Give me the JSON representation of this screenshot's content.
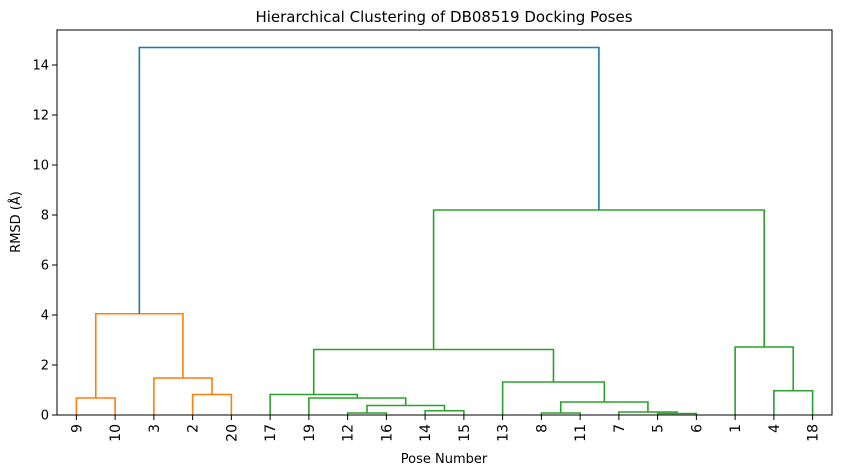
{
  "chart_data": {
    "type": "dendrogram",
    "title": "Hierarchical Clustering of DB08519 Docking Poses",
    "xlabel": "Pose Number",
    "ylabel": "RMSD (Å)",
    "ylim": [
      0,
      15.4
    ],
    "yticks": [
      0,
      2,
      4,
      6,
      8,
      10,
      12,
      14
    ],
    "leaves": [
      "9",
      "10",
      "3",
      "2",
      "20",
      "17",
      "19",
      "12",
      "16",
      "14",
      "15",
      "13",
      "8",
      "11",
      "7",
      "5",
      "6",
      "1",
      "4",
      "18"
    ],
    "colors": {
      "cluster_a": "#ff7f0e",
      "cluster_b": "#2ca02c",
      "root": "#1f77b4"
    },
    "links": [
      {
        "left": 0,
        "right": 1,
        "height": 0.68,
        "color": "cluster_a"
      },
      {
        "left": 3,
        "right": 4,
        "height": 0.82,
        "color": "cluster_a"
      },
      {
        "left": 2,
        "right": 3.5,
        "height": 1.48,
        "color": "cluster_a"
      },
      {
        "left": 0.5,
        "right": 2.75,
        "height": 4.05,
        "color": "cluster_a"
      },
      {
        "left": 7,
        "right": 8,
        "height": 0.08,
        "color": "cluster_b"
      },
      {
        "left": 9,
        "right": 10,
        "height": 0.17,
        "color": "cluster_b"
      },
      {
        "left": 7.5,
        "right": 9.5,
        "height": 0.38,
        "color": "cluster_b"
      },
      {
        "left": 6,
        "right": 8.5,
        "height": 0.68,
        "color": "cluster_b"
      },
      {
        "left": 5,
        "right": 7.25,
        "height": 0.82,
        "color": "cluster_b"
      },
      {
        "left": 12,
        "right": 13,
        "height": 0.08,
        "color": "cluster_b"
      },
      {
        "left": 15,
        "right": 16,
        "height": 0.06,
        "color": "cluster_b"
      },
      {
        "left": 14,
        "right": 15.5,
        "height": 0.12,
        "color": "cluster_b"
      },
      {
        "left": 12.5,
        "right": 14.75,
        "height": 0.52,
        "color": "cluster_b"
      },
      {
        "left": 11,
        "right": 13.625,
        "height": 1.32,
        "color": "cluster_b"
      },
      {
        "left": 6.125,
        "right": 12.3125,
        "height": 2.62,
        "color": "cluster_b"
      },
      {
        "left": 18,
        "right": 19,
        "height": 0.97,
        "color": "cluster_b"
      },
      {
        "left": 17,
        "right": 18.5,
        "height": 2.72,
        "color": "cluster_b"
      },
      {
        "left": 9.21875,
        "right": 17.75,
        "height": 8.2,
        "color": "cluster_b"
      },
      {
        "left": 1.625,
        "right": 13.484375,
        "height": 14.7,
        "color": "root"
      }
    ]
  }
}
